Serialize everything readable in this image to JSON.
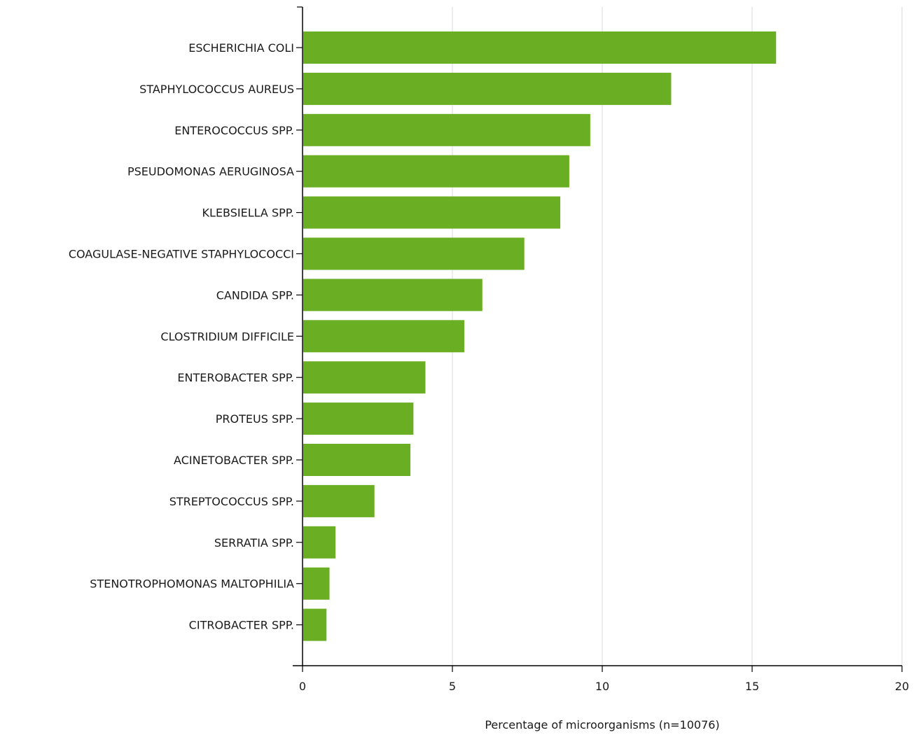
{
  "chart_data": {
    "type": "bar",
    "orientation": "horizontal",
    "title": "",
    "xlabel": "Percentage of microorganisms (n=10076)",
    "ylabel": "",
    "xlim": [
      0,
      20
    ],
    "xticks": [
      0,
      5,
      10,
      15,
      20
    ],
    "xtick_labels": [
      "0",
      "5",
      "10",
      "15",
      "20"
    ],
    "grid": "vertical",
    "legend": "none",
    "bar_color": "#6aaf23",
    "categories": [
      "ESCHERICHIA COLI",
      "STAPHYLOCOCCUS AUREUS",
      "ENTEROCOCCUS SPP.",
      "PSEUDOMONAS AERUGINOSA",
      "KLEBSIELLA SPP.",
      "COAGULASE-NEGATIVE STAPHYLOCOCCI",
      "CANDIDA SPP.",
      "CLOSTRIDIUM DIFFICILE",
      "ENTEROBACTER SPP.",
      "PROTEUS SPP.",
      "ACINETOBACTER SPP.",
      "STREPTOCOCCUS SPP.",
      "SERRATIA SPP.",
      "STENOTROPHOMONAS MALTOPHILIA",
      "CITROBACTER SPP."
    ],
    "values": [
      15.8,
      12.3,
      9.6,
      8.9,
      8.6,
      7.4,
      6.0,
      5.4,
      4.1,
      3.7,
      3.6,
      2.4,
      1.1,
      0.9,
      0.8
    ]
  }
}
